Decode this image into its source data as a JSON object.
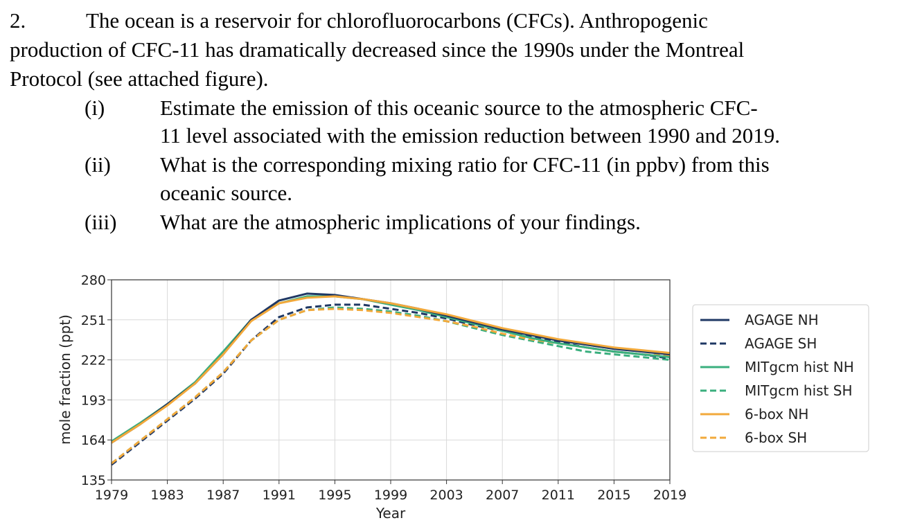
{
  "question": {
    "number": "2.",
    "intro_line1": "The ocean is a reservoir for chlorofluorocarbons (CFCs). Anthropogenic",
    "intro_line2": "production of CFC-11 has dramatically decreased since the 1990s under the Montreal",
    "intro_line3": "Protocol (see attached figure).",
    "parts": [
      {
        "label": "(i)",
        "lines": [
          "Estimate the emission of this oceanic source to the atmospheric CFC-",
          "11 level associated with the emission reduction between 1990 and 2019."
        ]
      },
      {
        "label": "(ii)",
        "lines": [
          "What is the corresponding mixing ratio for CFC-11 (in ppbv) from this",
          "oceanic source."
        ]
      },
      {
        "label": "(iii)",
        "lines": [
          "What are the atmospheric implications of your findings."
        ]
      }
    ]
  },
  "chart_data": {
    "type": "line",
    "title": "",
    "xlabel": "Year",
    "ylabel": "mole fraction (ppt)",
    "xlim": [
      1979,
      2019
    ],
    "ylim": [
      135,
      280
    ],
    "xticks": [
      1979,
      1983,
      1987,
      1991,
      1995,
      1999,
      2003,
      2007,
      2011,
      2015,
      2019
    ],
    "yticks": [
      135,
      164,
      193,
      222,
      251,
      280
    ],
    "grid": true,
    "legend_position": "right",
    "x": [
      1979,
      1981,
      1983,
      1985,
      1987,
      1989,
      1991,
      1993,
      1995,
      1997,
      1999,
      2001,
      2003,
      2005,
      2007,
      2009,
      2011,
      2013,
      2015,
      2017,
      2019
    ],
    "series": [
      {
        "name": "AGAGE NH",
        "color": "#1f3864",
        "dash": "solid",
        "values": [
          162,
          175,
          190,
          205,
          226,
          251,
          265,
          270,
          269,
          266,
          263,
          259,
          254,
          249,
          244,
          240,
          236,
          233,
          230,
          228,
          226
        ]
      },
      {
        "name": "AGAGE SH",
        "color": "#1f3864",
        "dash": "dashed",
        "values": [
          146,
          162,
          178,
          194,
          212,
          236,
          253,
          260,
          262,
          262,
          259,
          256,
          252,
          247,
          243,
          239,
          235,
          231,
          228,
          226,
          223
        ]
      },
      {
        "name": "MITgcm hist NH",
        "color": "#3aaf7e",
        "dash": "solid",
        "values": [
          163,
          176,
          190,
          206,
          228,
          251,
          263,
          268,
          268,
          266,
          262,
          258,
          253,
          248,
          243,
          238,
          234,
          231,
          228,
          226,
          224
        ]
      },
      {
        "name": "MITgcm hist SH",
        "color": "#3aaf7e",
        "dash": "dashed",
        "values": [
          147,
          163,
          179,
          195,
          213,
          236,
          251,
          258,
          260,
          259,
          257,
          254,
          250,
          245,
          240,
          236,
          232,
          228,
          226,
          224,
          222
        ]
      },
      {
        "name": "6-box NH",
        "color": "#f2a93b",
        "dash": "solid",
        "values": [
          162,
          175,
          189,
          205,
          226,
          250,
          263,
          267,
          268,
          266,
          263,
          259,
          255,
          250,
          245,
          241,
          237,
          234,
          231,
          229,
          227
        ]
      },
      {
        "name": "6-box SH",
        "color": "#f2a93b",
        "dash": "dashed",
        "values": [
          147,
          163,
          179,
          195,
          213,
          236,
          251,
          258,
          259,
          258,
          256,
          253,
          250,
          246,
          241,
          237,
          234,
          231,
          228,
          226,
          225
        ]
      }
    ]
  }
}
